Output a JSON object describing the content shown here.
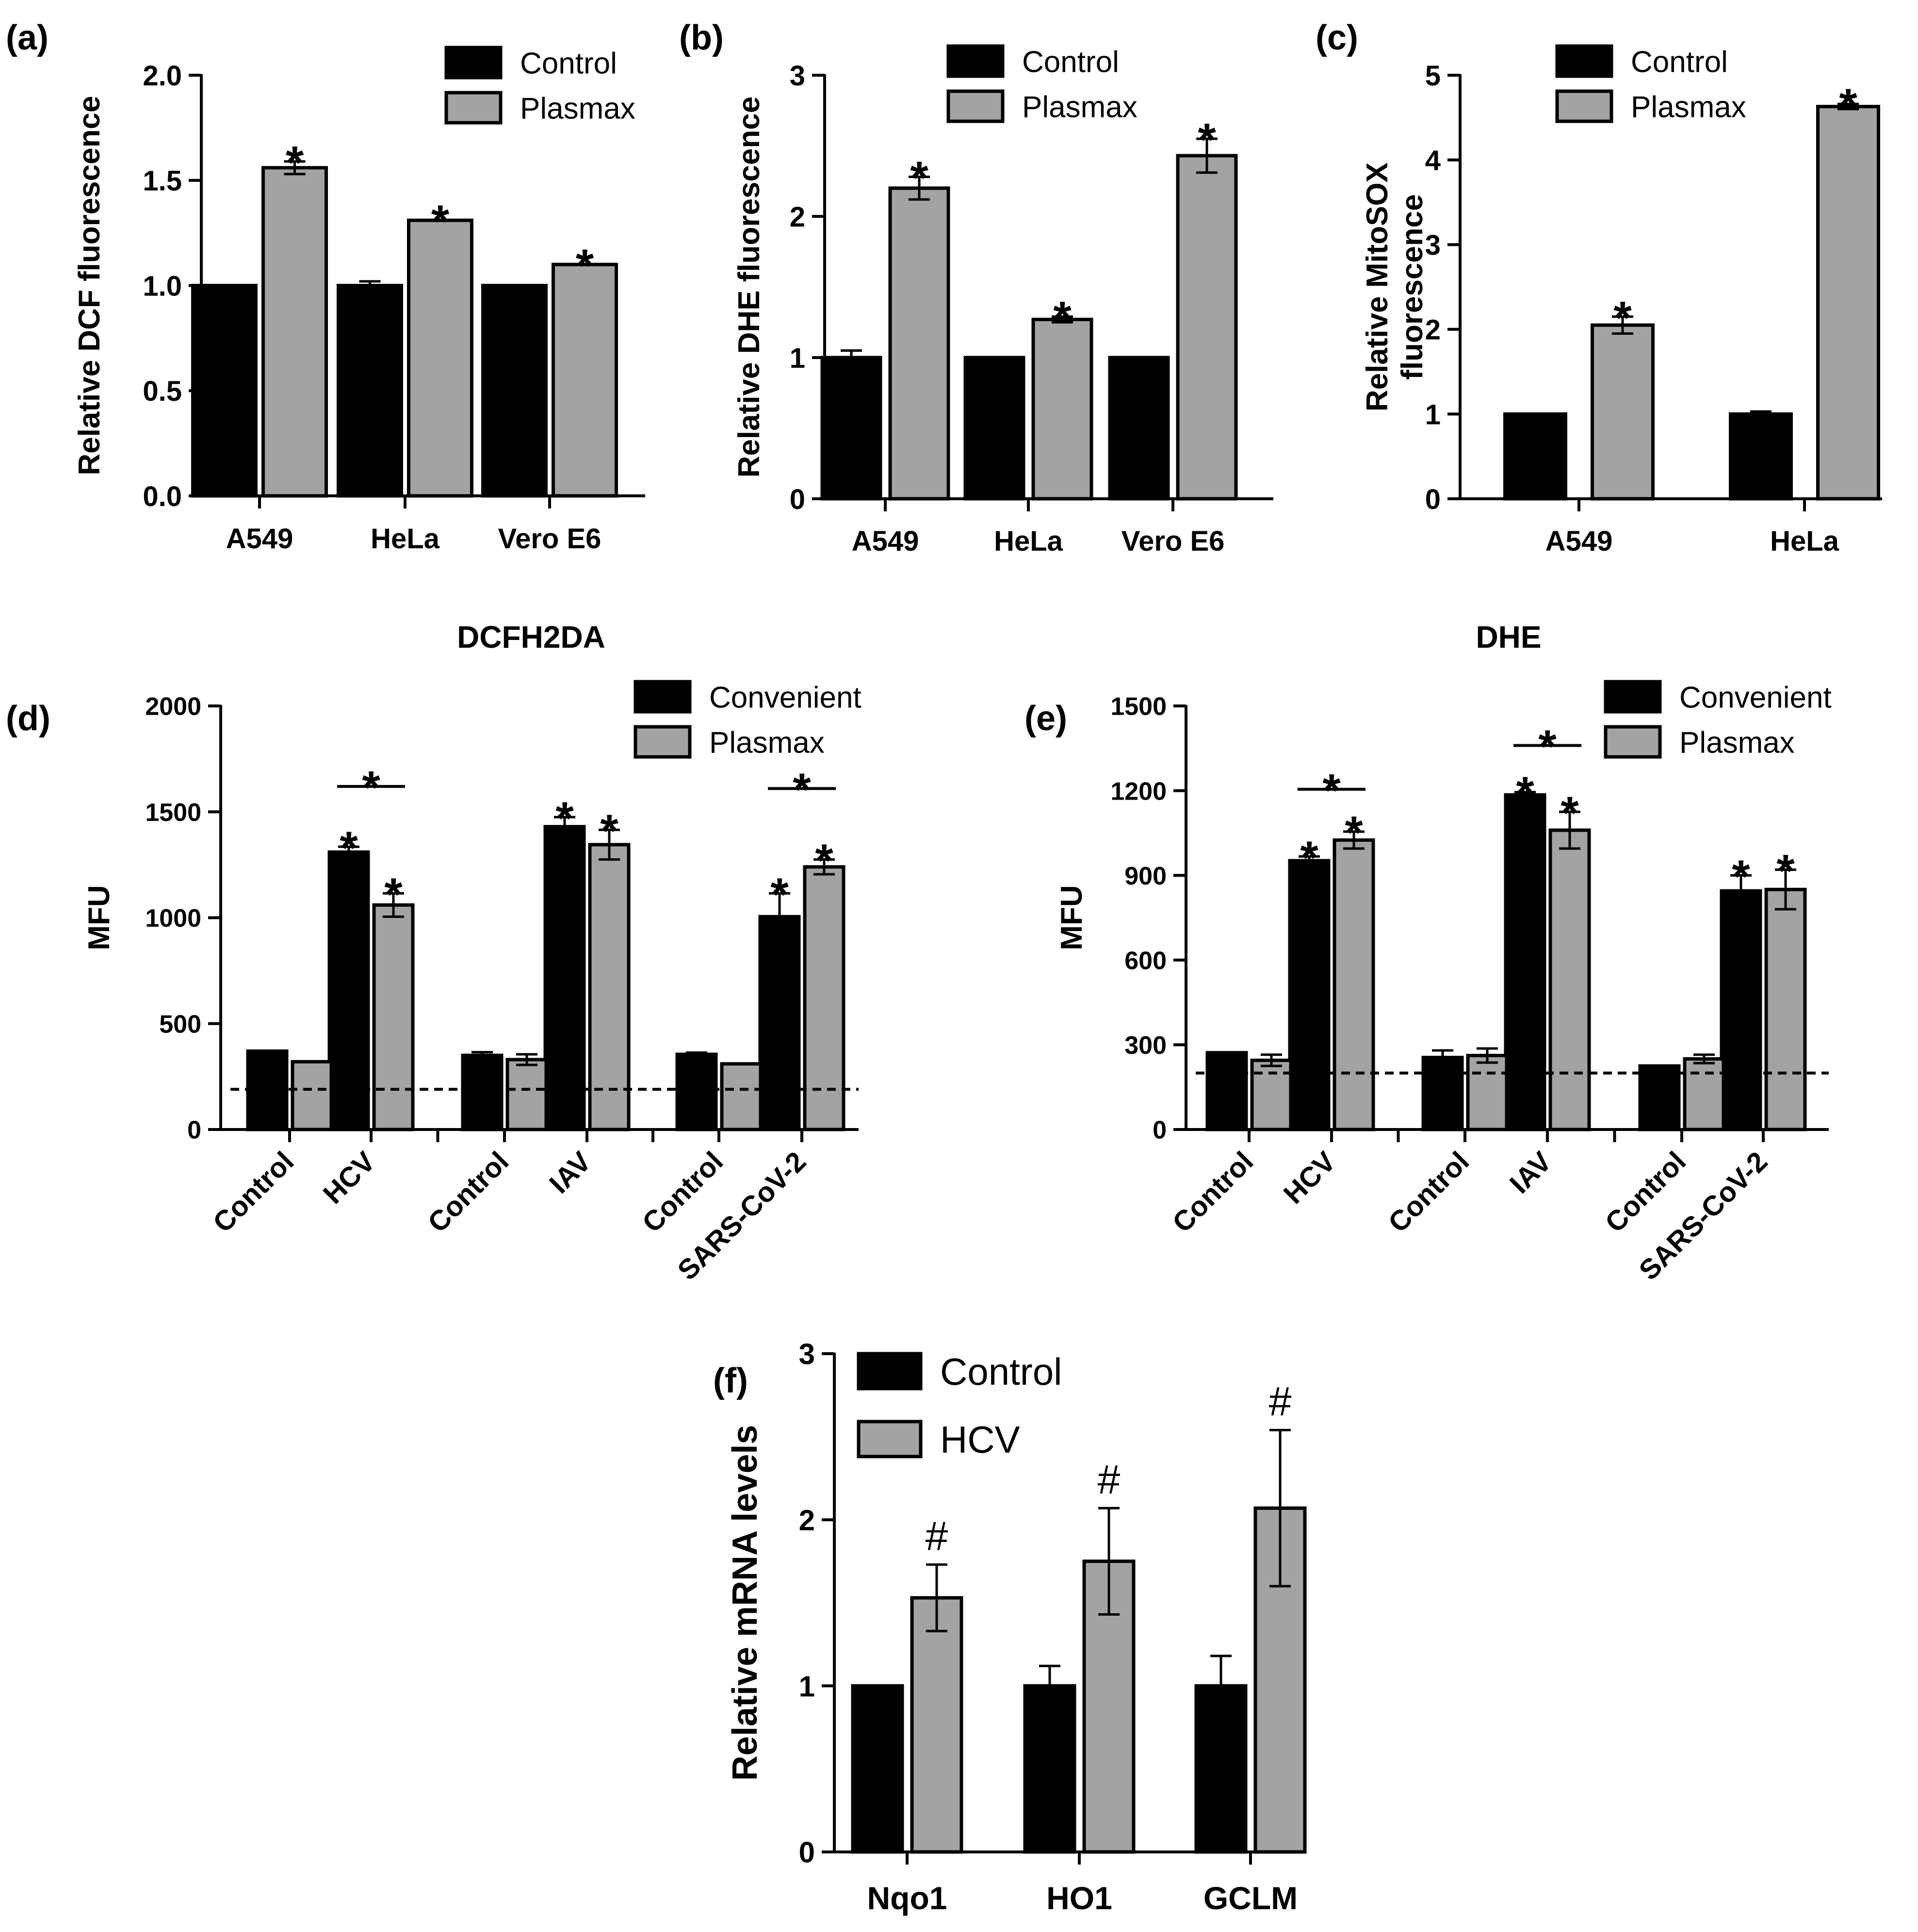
{
  "figure": {
    "colors": {
      "black_bar": "#000000",
      "gray_bar": "#a3a3a3",
      "axis": "#000000",
      "background": "#ffffff"
    }
  },
  "chart_data": [
    {
      "panel": "(a)",
      "type": "bar",
      "title": "",
      "ylabel": "Relative DCF fluorescence",
      "xlabel": "",
      "ylim": [
        0,
        2.0
      ],
      "yticks": [
        0,
        0.5,
        1.0,
        1.5,
        2.0
      ],
      "ytick_labels": [
        "0.0",
        "0.5",
        "1.0",
        "1.5",
        "2.0"
      ],
      "categories": [
        "A549",
        "HeLa",
        "Vero E6"
      ],
      "series": [
        {
          "name": "Control",
          "color": "#000000",
          "values": [
            1.0,
            1.0,
            1.0
          ],
          "errors": [
            0,
            0.02,
            0
          ]
        },
        {
          "name": "Plasmax",
          "color": "#a3a3a3",
          "values": [
            1.56,
            1.31,
            1.1
          ],
          "errors": [
            0.03,
            0,
            0
          ]
        }
      ],
      "annotations": [
        {
          "series": 1,
          "category": 0,
          "text": "*"
        },
        {
          "series": 1,
          "category": 1,
          "text": "*"
        },
        {
          "series": 1,
          "category": 2,
          "text": "*"
        }
      ],
      "legend": "top-right"
    },
    {
      "panel": "(b)",
      "type": "bar",
      "title": "",
      "ylabel": "Relative DHE fluorescence",
      "xlabel": "",
      "ylim": [
        0,
        3
      ],
      "yticks": [
        0,
        1,
        2,
        3
      ],
      "ytick_labels": [
        "0",
        "1",
        "2",
        "3"
      ],
      "categories": [
        "A549",
        "HeLa",
        "Vero E6"
      ],
      "series": [
        {
          "name": "Control",
          "color": "#000000",
          "values": [
            1.0,
            1.0,
            1.0
          ],
          "errors": [
            0.05,
            0,
            0
          ]
        },
        {
          "name": "Plasmax",
          "color": "#a3a3a3",
          "values": [
            2.2,
            1.27,
            2.43
          ],
          "errors": [
            0.08,
            0.02,
            0.12
          ]
        }
      ],
      "annotations": [
        {
          "series": 1,
          "category": 0,
          "text": "*"
        },
        {
          "series": 1,
          "category": 1,
          "text": "*"
        },
        {
          "series": 1,
          "category": 2,
          "text": "*"
        }
      ],
      "legend": "top-right"
    },
    {
      "panel": "(c)",
      "type": "bar",
      "title": "",
      "ylabel": "Relative MitoSOX fluorescence",
      "ylabel_lines": [
        "Relative MitoSOX",
        "fluorescence"
      ],
      "xlabel": "",
      "ylim": [
        0,
        5
      ],
      "yticks": [
        0,
        1,
        2,
        3,
        4,
        5
      ],
      "ytick_labels": [
        "0",
        "1",
        "2",
        "3",
        "4",
        "5"
      ],
      "categories": [
        "A549",
        "HeLa"
      ],
      "series": [
        {
          "name": "Control",
          "color": "#000000",
          "values": [
            1.0,
            1.0
          ],
          "errors": [
            0,
            0.03
          ]
        },
        {
          "name": "Plasmax",
          "color": "#a3a3a3",
          "values": [
            2.05,
            4.63
          ],
          "errors": [
            0.1,
            0.03
          ]
        }
      ],
      "annotations": [
        {
          "series": 1,
          "category": 0,
          "text": "*"
        },
        {
          "series": 1,
          "category": 1,
          "text": "*"
        }
      ],
      "legend": "top-right"
    },
    {
      "panel": "(d)",
      "type": "bar",
      "title": "DCFH2DA",
      "ylabel": "MFU",
      "xlabel": "",
      "ylim": [
        0,
        2000
      ],
      "yticks": [
        0,
        500,
        1000,
        1500,
        2000
      ],
      "ytick_labels": [
        "0",
        "500",
        "1000",
        "1500",
        "2000"
      ],
      "categories": [
        "Control",
        "HCV",
        "Control",
        "IAV",
        "Control",
        "SARS-CoV-2"
      ],
      "group_gaps_after": [
        1,
        3
      ],
      "series": [
        {
          "name": "Convenient",
          "color": "#000000",
          "values": [
            370,
            1310,
            350,
            1430,
            355,
            1005
          ],
          "errors": [
            0,
            25,
            15,
            45,
            8,
            110
          ]
        },
        {
          "name": "Plasmax",
          "color": "#a3a3a3",
          "values": [
            320,
            1060,
            330,
            1345,
            310,
            1240
          ],
          "errors": [
            0,
            55,
            25,
            70,
            0,
            35
          ]
        }
      ],
      "reference_line": 190,
      "annotations": [
        {
          "series": 0,
          "category": 1,
          "text": "*"
        },
        {
          "series": 1,
          "category": 1,
          "text": "*"
        },
        {
          "series": 0,
          "category": 3,
          "text": "*"
        },
        {
          "series": 1,
          "category": 3,
          "text": "*"
        },
        {
          "series": 0,
          "category": 5,
          "text": "*"
        },
        {
          "series": 1,
          "category": 5,
          "text": "*"
        }
      ],
      "brackets": [
        {
          "category": 1,
          "text": "*",
          "level": 1620
        },
        {
          "category": 5,
          "text": "*",
          "level": 1610
        }
      ],
      "legend": "top-right"
    },
    {
      "panel": "(e)",
      "type": "bar",
      "title": "DHE",
      "ylabel": "MFU",
      "xlabel": "",
      "ylim": [
        0,
        1500
      ],
      "yticks": [
        0,
        300,
        600,
        900,
        1200,
        1500
      ],
      "ytick_labels": [
        "0",
        "300",
        "600",
        "900",
        "1200",
        "1500"
      ],
      "categories": [
        "Control",
        "HCV",
        "Control",
        "IAV",
        "Control",
        "SARS-CoV-2"
      ],
      "group_gaps_after": [
        1,
        3
      ],
      "series": [
        {
          "name": "Convenient",
          "color": "#000000",
          "values": [
            272,
            952,
            255,
            1185,
            225,
            845
          ],
          "errors": [
            0,
            15,
            25,
            10,
            0,
            55
          ]
        },
        {
          "name": "Plasmax",
          "color": "#a3a3a3",
          "values": [
            245,
            1025,
            262,
            1060,
            250,
            850
          ],
          "errors": [
            20,
            30,
            25,
            65,
            15,
            70
          ]
        }
      ],
      "reference_line": 200,
      "annotations": [
        {
          "series": 0,
          "category": 1,
          "text": "*"
        },
        {
          "series": 1,
          "category": 1,
          "text": "*"
        },
        {
          "series": 0,
          "category": 3,
          "text": "*"
        },
        {
          "series": 1,
          "category": 3,
          "text": "*"
        },
        {
          "series": 0,
          "category": 5,
          "text": "*"
        },
        {
          "series": 1,
          "category": 5,
          "text": "*"
        }
      ],
      "brackets": [
        {
          "category": 1,
          "text": "*",
          "level": 1205
        },
        {
          "category": 3,
          "text": "*",
          "level": 1360
        }
      ],
      "legend": "top-right"
    },
    {
      "panel": "(f)",
      "type": "bar",
      "title": "",
      "ylabel": "Relative mRNA levels",
      "xlabel": "",
      "ylim": [
        0,
        3
      ],
      "yticks": [
        0,
        1,
        2,
        3
      ],
      "ytick_labels": [
        "0",
        "1",
        "2",
        "3"
      ],
      "categories": [
        "Nqo1",
        "HO1",
        "GCLM"
      ],
      "series": [
        {
          "name": "Control",
          "color": "#000000",
          "values": [
            1.0,
            1.0,
            1.0
          ],
          "errors": [
            0,
            0.12,
            0.18
          ]
        },
        {
          "name": "HCV",
          "color": "#a3a3a3",
          "values": [
            1.53,
            1.75,
            2.07
          ],
          "errors": [
            0.2,
            0.32,
            0.47
          ]
        }
      ],
      "annotations": [
        {
          "series": 1,
          "category": 0,
          "text": "#"
        },
        {
          "series": 1,
          "category": 1,
          "text": "#"
        },
        {
          "series": 1,
          "category": 2,
          "text": "#"
        }
      ],
      "legend": "top-left"
    }
  ]
}
